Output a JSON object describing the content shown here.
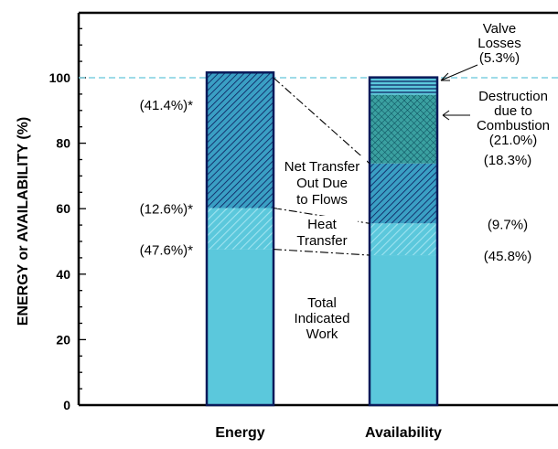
{
  "chart_data": {
    "type": "bar",
    "stacked": true,
    "title": "",
    "ylabel": "ENERGY or AVAILABILITY (%)",
    "xlabel": "",
    "ylim": [
      0,
      120
    ],
    "yticks": [
      0,
      20,
      40,
      60,
      80,
      100
    ],
    "reference_line": 100,
    "categories": [
      "Energy",
      "Availability"
    ],
    "stacks": [
      {
        "category": "Energy",
        "segments": [
          {
            "name": "Total Indicated Work",
            "value": 47.6,
            "label": "(47.6%)*",
            "fill": "solid"
          },
          {
            "name": "Heat Transfer",
            "value": 12.6,
            "label": "(12.6%)*",
            "fill": "hatch-light"
          },
          {
            "name": "Net Transfer Out Due to Flows",
            "value": 41.4,
            "label": "(41.4%)*",
            "fill": "hatch-dark"
          }
        ]
      },
      {
        "category": "Availability",
        "segments": [
          {
            "name": "Total Indicated Work",
            "value": 45.8,
            "label": "(45.8%)",
            "fill": "solid"
          },
          {
            "name": "Heat Transfer",
            "value": 9.7,
            "label": "(9.7%)",
            "fill": "hatch-light"
          },
          {
            "name": "Net Transfer Out Due to Flows",
            "value": 18.3,
            "label": "(18.3%)",
            "fill": "hatch-dark"
          },
          {
            "name": "Destruction due to Combustion",
            "value": 21.0,
            "label": "(21.0%)",
            "fill": "crosshatch"
          },
          {
            "name": "Valve Losses",
            "value": 5.3,
            "label": "(5.3%)",
            "fill": "stripes-light"
          }
        ]
      }
    ],
    "annotations": {
      "net_transfer": [
        "Net Transfer",
        "Out Due",
        "to Flows"
      ],
      "heat_transfer": [
        "Heat",
        "Transfer"
      ],
      "total_work": [
        "Total",
        "Indicated",
        "Work"
      ],
      "valve_losses": [
        "Valve",
        "Losses",
        "(5.3%)"
      ],
      "destruction": [
        "Destruction",
        "due to",
        "Combustion",
        "(21.0%)"
      ]
    },
    "colors": {
      "fill": "#5bc8dc",
      "hatch_light_bg": "#5bc8dc",
      "hatch_dark_bg": "#3a9fc4",
      "cross_bg": "#3aa0a0",
      "line": "#0a1a5a",
      "dashed": "#7ecfe0"
    }
  }
}
